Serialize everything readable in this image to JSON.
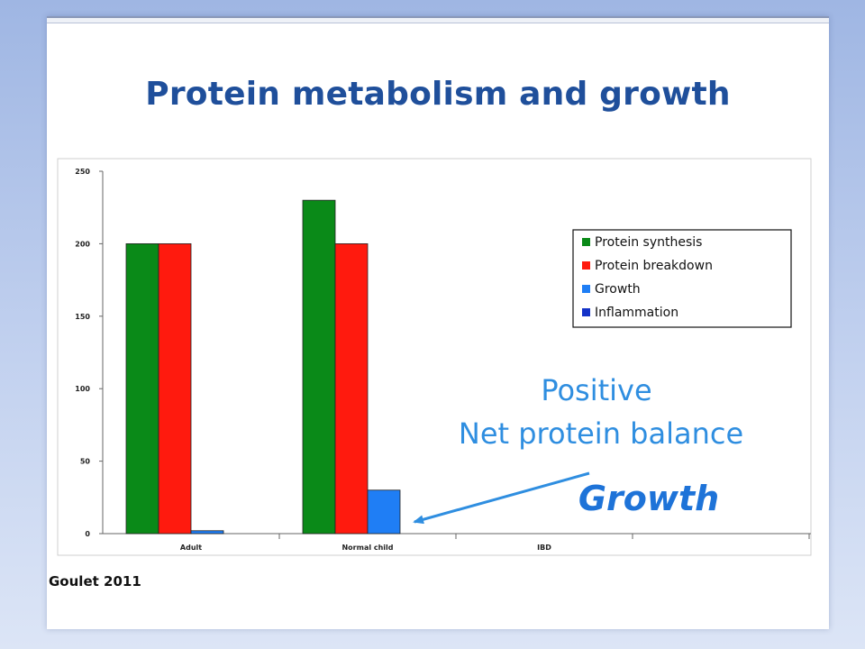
{
  "slide": {
    "title": "Protein metabolism and growth",
    "source": "Goulet 2011"
  },
  "chart_data": {
    "type": "bar",
    "categories": [
      "Adult",
      "Normal child",
      "IBD"
    ],
    "series": [
      {
        "name": "Protein synthesis",
        "color": "#0a8a18",
        "values": [
          200,
          230,
          null
        ]
      },
      {
        "name": "Protein breakdown",
        "color": "#ff1a0e",
        "values": [
          200,
          200,
          null
        ]
      },
      {
        "name": "Growth",
        "color": "#1f7ef5",
        "values": [
          2,
          30,
          null
        ]
      },
      {
        "name": "Inflammation",
        "color": "#1432c8",
        "values": [
          null,
          null,
          null
        ]
      }
    ],
    "ylim": [
      0,
      250
    ],
    "yticks": [
      "0",
      "50",
      "100",
      "150",
      "200",
      "250"
    ],
    "legend_position": "top-right",
    "annotations": {
      "line1": "Positive",
      "line2": "Net protein balance",
      "emphasis": "Growth"
    },
    "grid": false
  }
}
